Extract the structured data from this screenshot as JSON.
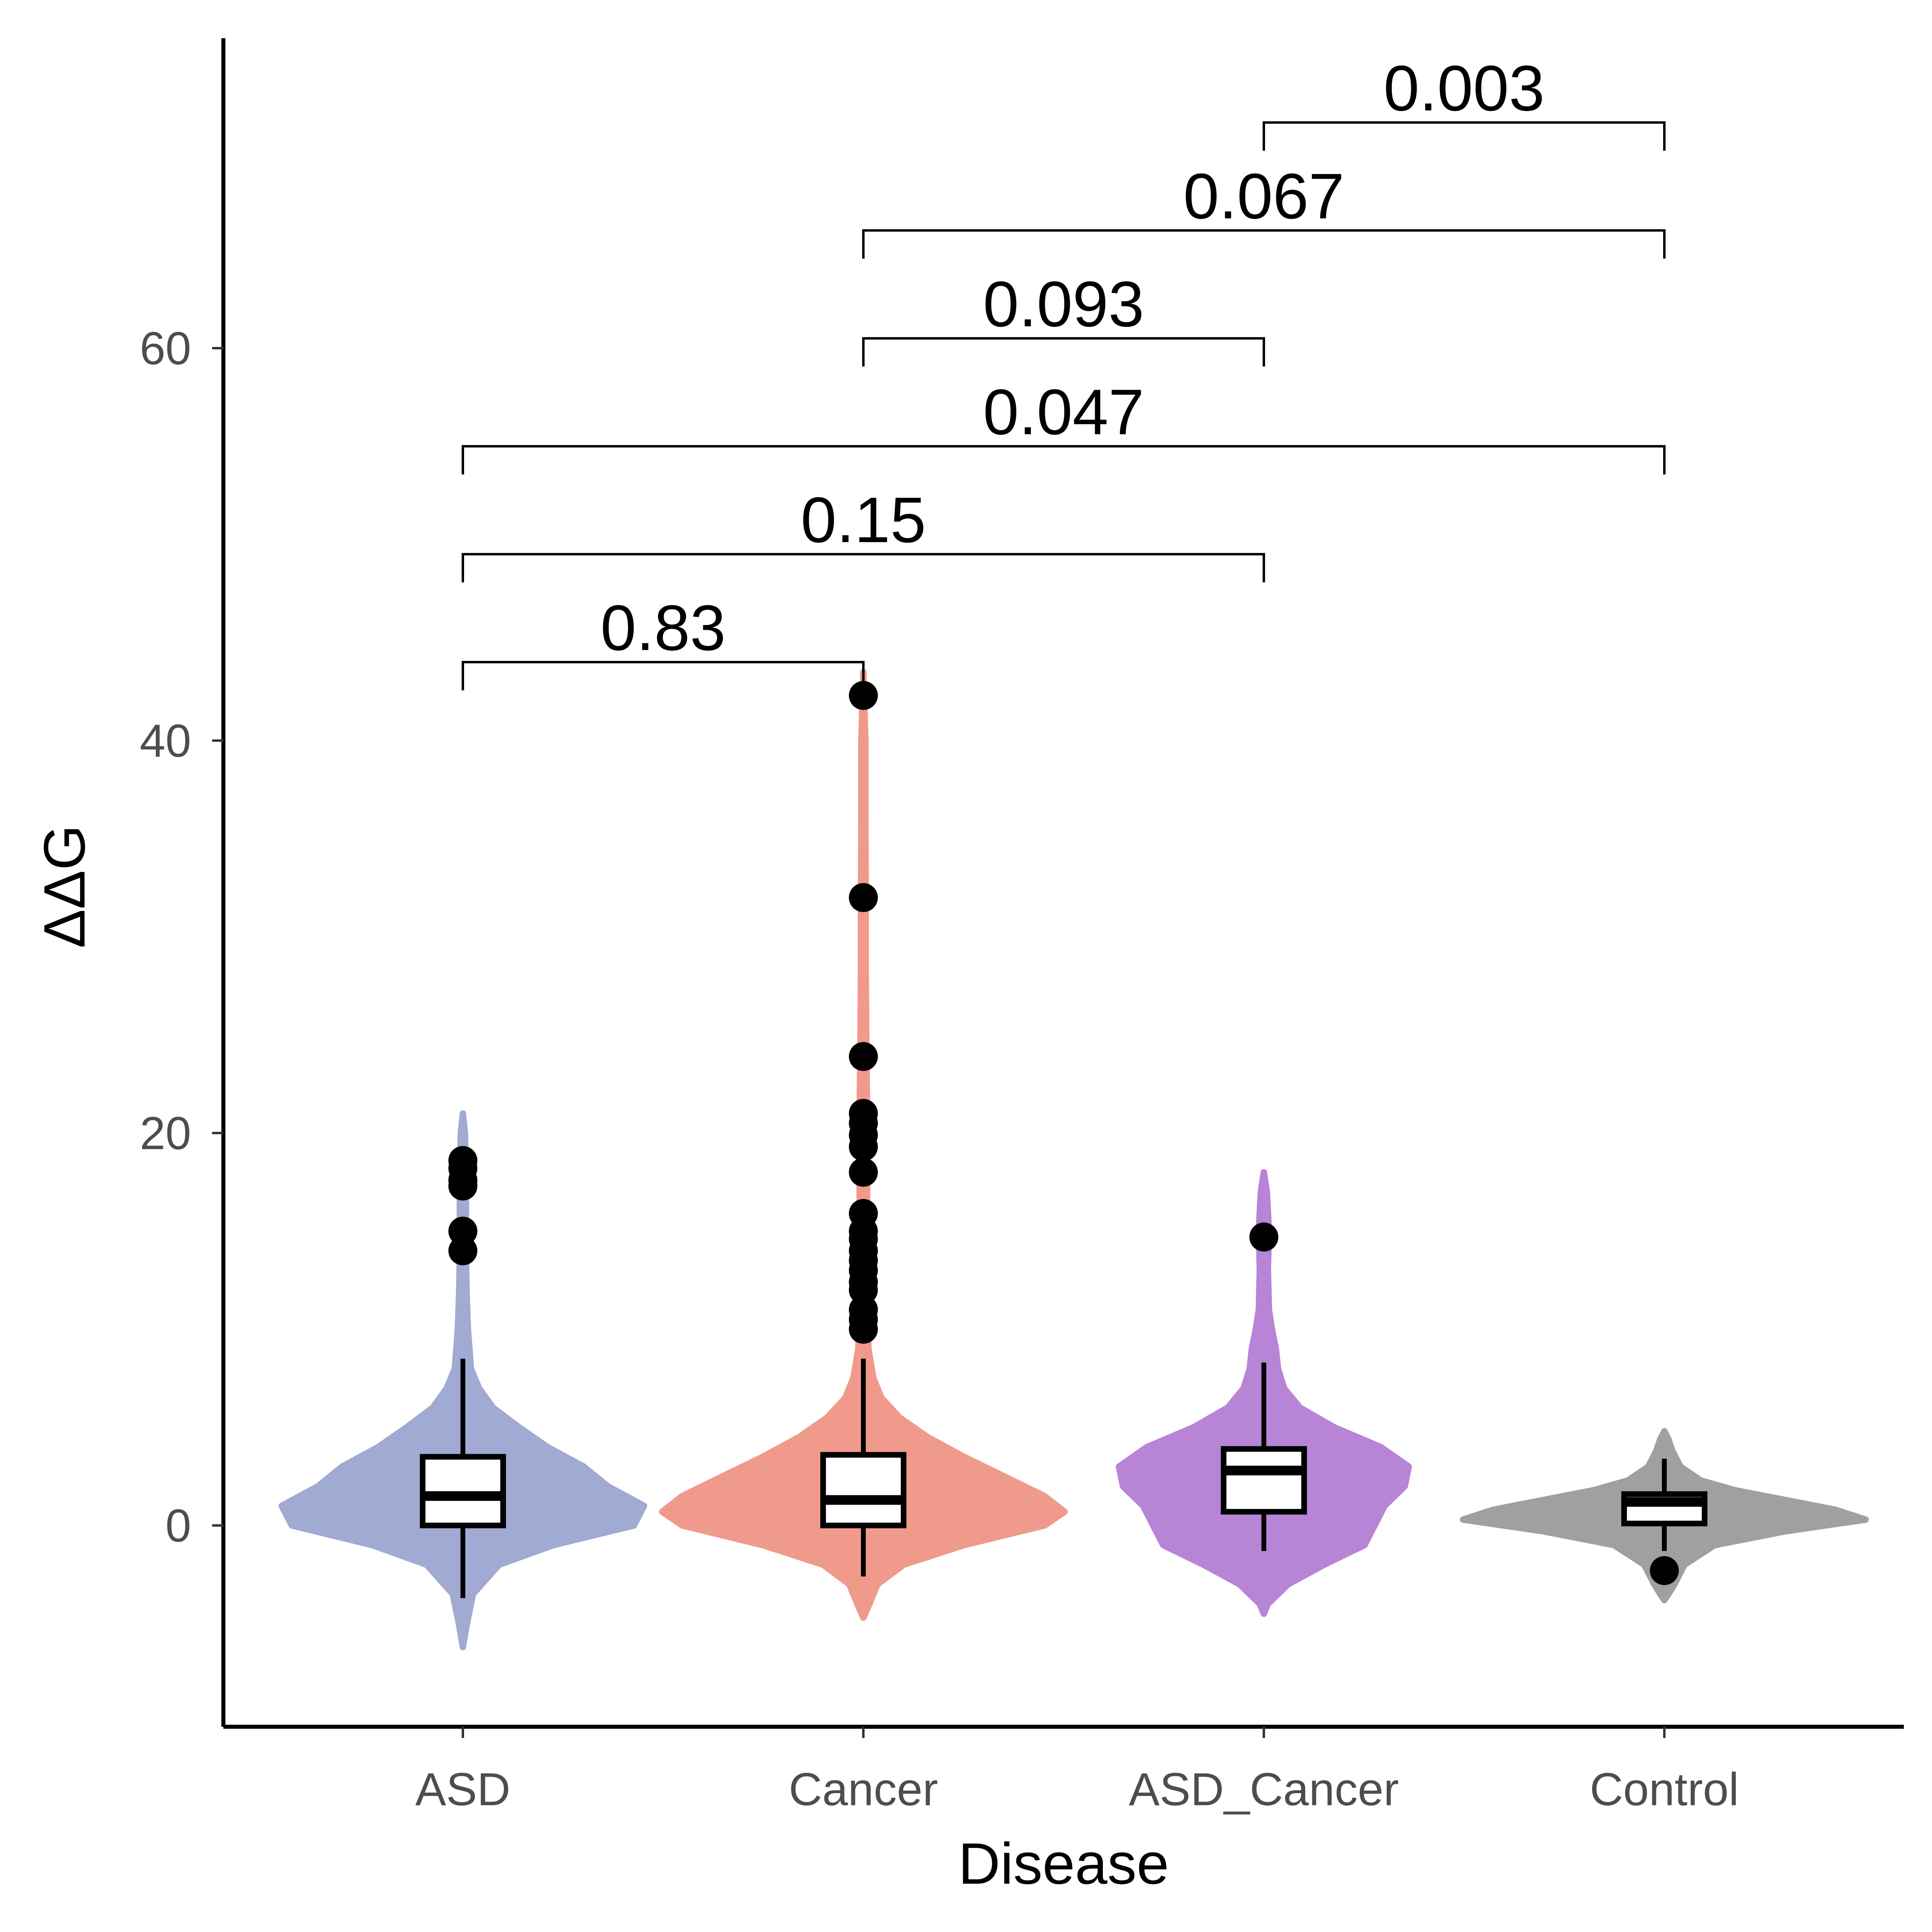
{
  "chart_data": {
    "type": "violin",
    "xlabel": "Disease",
    "ylabel": "ΔΔG",
    "ylim": [
      -10,
      76
    ],
    "yticks": [
      0,
      20,
      40,
      60
    ],
    "categories": [
      "ASD",
      "Cancer",
      "ASD_Cancer",
      "Control"
    ],
    "colors": {
      "ASD": "#a0aad2",
      "Cancer": "#f09a8c",
      "ASD_Cancer": "#b784d6",
      "Control": "#a0a0a0"
    },
    "grid": false,
    "legend": "none",
    "groups": [
      {
        "name": "ASD",
        "box": {
          "q1": 0.0,
          "median": 1.5,
          "q3": 3.5,
          "whisker_low": -3.7,
          "whisker_high": 8.5
        },
        "violin_range": [
          -6.2,
          21.0
        ],
        "outliers": [
          18.6,
          18.2,
          17.6,
          17.3,
          15.0,
          14.0
        ],
        "violin_profile": [
          [
            -6.2,
            0.0
          ],
          [
            -5.0,
            0.02
          ],
          [
            -3.5,
            0.05
          ],
          [
            -2.0,
            0.18
          ],
          [
            -1.0,
            0.45
          ],
          [
            0.0,
            0.85
          ],
          [
            1.0,
            0.9
          ],
          [
            2.0,
            0.72
          ],
          [
            3.0,
            0.6
          ],
          [
            4.0,
            0.42
          ],
          [
            5.0,
            0.28
          ],
          [
            6.0,
            0.15
          ],
          [
            7.0,
            0.08
          ],
          [
            8.0,
            0.04
          ],
          [
            10.0,
            0.025
          ],
          [
            12.0,
            0.018
          ],
          [
            14.0,
            0.015
          ],
          [
            16.0,
            0.015
          ],
          [
            18.0,
            0.015
          ],
          [
            20.0,
            0.01
          ],
          [
            21.0,
            0.0
          ]
        ]
      },
      {
        "name": "Cancer",
        "box": {
          "q1": 0.0,
          "median": 1.3,
          "q3": 3.6,
          "whisker_low": -2.6,
          "whisker_high": 8.5
        },
        "violin_range": [
          -4.7,
          43.5
        ],
        "outliers": [
          42.3,
          32.0,
          23.9,
          21.0,
          20.5,
          19.9,
          19.3,
          18.0,
          15.9,
          15.0,
          14.6,
          14.0,
          13.5,
          13.0,
          12.4,
          12.0,
          11.0,
          10.5,
          10.0
        ],
        "violin_profile": [
          [
            -4.7,
            0.0
          ],
          [
            -4.0,
            0.03
          ],
          [
            -3.0,
            0.07
          ],
          [
            -2.0,
            0.2
          ],
          [
            -1.0,
            0.5
          ],
          [
            0.0,
            0.9
          ],
          [
            0.7,
            1.0
          ],
          [
            1.5,
            0.9
          ],
          [
            2.5,
            0.7
          ],
          [
            3.5,
            0.5
          ],
          [
            4.5,
            0.32
          ],
          [
            5.5,
            0.18
          ],
          [
            6.5,
            0.09
          ],
          [
            7.5,
            0.05
          ],
          [
            9.0,
            0.025
          ],
          [
            12.0,
            0.02
          ],
          [
            16.0,
            0.018
          ],
          [
            20.0,
            0.02
          ],
          [
            24.0,
            0.015
          ],
          [
            28.0,
            0.012
          ],
          [
            32.0,
            0.012
          ],
          [
            36.0,
            0.01
          ],
          [
            40.0,
            0.01
          ],
          [
            43.5,
            0.0
          ]
        ]
      },
      {
        "name": "ASD_Cancer",
        "box": {
          "q1": 0.7,
          "median": 2.8,
          "q3": 3.9,
          "whisker_low": -1.3,
          "whisker_high": 8.3
        },
        "violin_range": [
          -4.5,
          18.0
        ],
        "outliers": [
          14.7
        ],
        "violin_profile": [
          [
            -4.5,
            0.0
          ],
          [
            -4.0,
            0.02
          ],
          [
            -3.0,
            0.12
          ],
          [
            -2.0,
            0.3
          ],
          [
            -1.0,
            0.5
          ],
          [
            0.0,
            0.55
          ],
          [
            1.0,
            0.6
          ],
          [
            2.0,
            0.7
          ],
          [
            3.0,
            0.72
          ],
          [
            4.0,
            0.58
          ],
          [
            5.0,
            0.35
          ],
          [
            6.0,
            0.18
          ],
          [
            7.0,
            0.1
          ],
          [
            8.0,
            0.07
          ],
          [
            9.0,
            0.06
          ],
          [
            10.0,
            0.04
          ],
          [
            11.0,
            0.025
          ],
          [
            13.0,
            0.02
          ],
          [
            15.0,
            0.025
          ],
          [
            17.0,
            0.015
          ],
          [
            18.0,
            0.0
          ]
        ]
      },
      {
        "name": "Control",
        "box": {
          "q1": 0.1,
          "median": 1.2,
          "q3": 1.6,
          "whisker_low": -1.3,
          "whisker_high": 3.4
        },
        "violin_range": [
          -3.8,
          4.8
        ],
        "outliers": [
          -2.3
        ],
        "violin_profile": [
          [
            -3.8,
            0.0
          ],
          [
            -3.5,
            0.02
          ],
          [
            -3.0,
            0.05
          ],
          [
            -2.0,
            0.1
          ],
          [
            -1.0,
            0.25
          ],
          [
            -0.3,
            0.6
          ],
          [
            0.3,
            1.0
          ],
          [
            0.8,
            0.85
          ],
          [
            1.3,
            0.6
          ],
          [
            1.8,
            0.35
          ],
          [
            2.3,
            0.18
          ],
          [
            3.0,
            0.08
          ],
          [
            3.8,
            0.04
          ],
          [
            4.4,
            0.02
          ],
          [
            4.8,
            0.0
          ]
        ]
      }
    ],
    "comparisons": [
      {
        "from": "ASD",
        "to": "Cancer",
        "label": "0.83",
        "y": 44.0
      },
      {
        "from": "ASD",
        "to": "ASD_Cancer",
        "label": "0.15",
        "y": 49.5
      },
      {
        "from": "ASD",
        "to": "Control",
        "label": "0.047",
        "y": 55.0
      },
      {
        "from": "Cancer",
        "to": "ASD_Cancer",
        "label": "0.093",
        "y": 60.5
      },
      {
        "from": "Cancer",
        "to": "Control",
        "label": "0.067",
        "y": 66.0
      },
      {
        "from": "ASD_Cancer",
        "to": "Control",
        "label": "0.003",
        "y": 71.5
      }
    ]
  }
}
